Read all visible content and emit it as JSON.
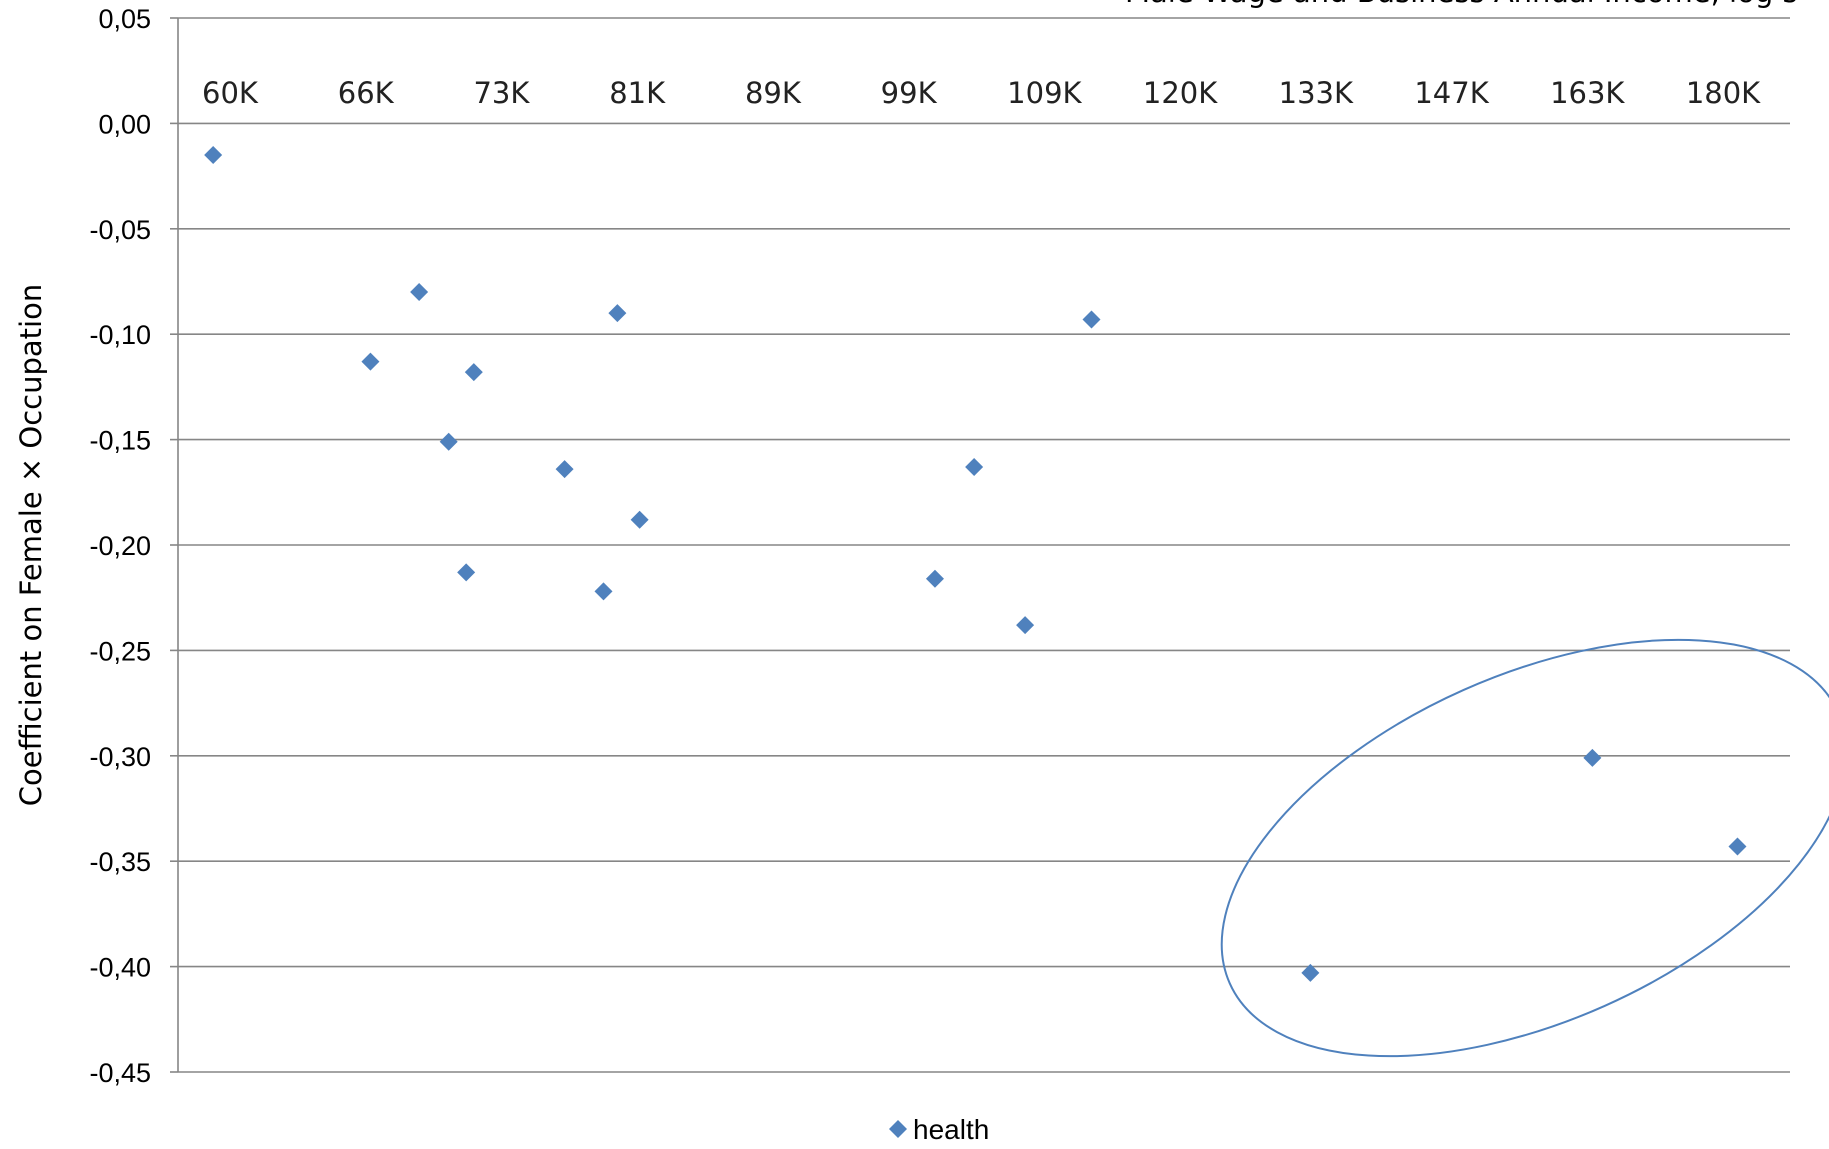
{
  "chart_data": {
    "type": "scatter",
    "title": "",
    "xlabel": "Male Wage and Business Annual Income, log s",
    "ylabel": "Coefficient on Female × Occupation",
    "x_axis_scale": "log",
    "x_axis_position": "top",
    "xlim": [
      58000,
      187000
    ],
    "ylim": [
      -0.45,
      0.05
    ],
    "xticks": [
      "60K",
      "66K",
      "73K",
      "81K",
      "89K",
      "99K",
      "109K",
      "120K",
      "133K",
      "147K",
      "163K",
      "180K"
    ],
    "yticks": [
      "0,05",
      "0,00",
      "-0,05",
      "-0,10",
      "-0,15",
      "-0,20",
      "-0,25",
      "-0,30",
      "-0,35",
      "-0,40",
      "-0,45"
    ],
    "grid": true,
    "legend_position": "bottom",
    "series": [
      {
        "name": "health",
        "color": "#4F81BD",
        "marker": "diamond",
        "points": [
          {
            "x": 59500,
            "y": -0.015
          },
          {
            "x": 66700,
            "y": -0.113
          },
          {
            "x": 69100,
            "y": -0.08
          },
          {
            "x": 70600,
            "y": -0.151
          },
          {
            "x": 71500,
            "y": -0.213
          },
          {
            "x": 71900,
            "y": -0.118
          },
          {
            "x": 76800,
            "y": -0.164
          },
          {
            "x": 79000,
            "y": -0.222
          },
          {
            "x": 79800,
            "y": -0.09
          },
          {
            "x": 81100,
            "y": -0.188
          },
          {
            "x": 100500,
            "y": -0.216
          },
          {
            "x": 103400,
            "y": -0.163
          },
          {
            "x": 107300,
            "y": -0.238
          },
          {
            "x": 112600,
            "y": -0.093
          },
          {
            "x": 132000,
            "y": -0.403
          },
          {
            "x": 162000,
            "y": -0.301
          },
          {
            "x": 180000,
            "y": -0.343
          }
        ]
      }
    ],
    "annotations": [
      {
        "type": "ellipse",
        "description": "highlighted group of high-income points",
        "color": "#4F81BD"
      }
    ]
  }
}
